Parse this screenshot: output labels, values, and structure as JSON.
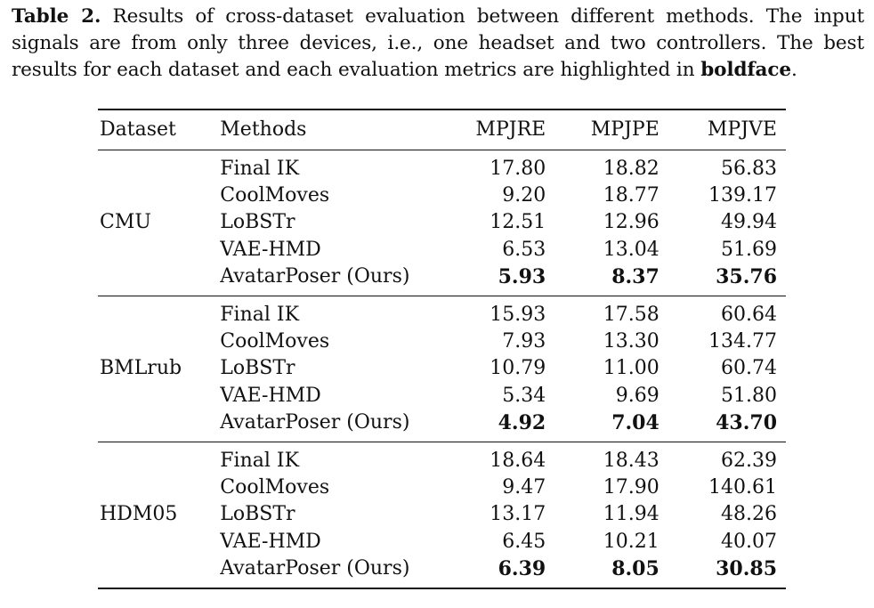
{
  "caption": {
    "label": "Table 2.",
    "text_before_bold": " Results of cross-dataset evaluation between different methods. The input signals are from only three devices, i.e., one headset and two controllers. The best results for each dataset and each evaluation metrics are highlighted in ",
    "bold_word": "boldface",
    "text_after_bold": "."
  },
  "table": {
    "headers": [
      "Dataset",
      "Methods",
      "MPJRE",
      "MPJPE",
      "MPJVE"
    ],
    "groups": [
      {
        "dataset": "CMU",
        "rows": [
          {
            "method": "Final IK",
            "mpjre": "17.80",
            "mpjpe": "18.82",
            "mpjve": "56.83"
          },
          {
            "method": "CoolMoves",
            "mpjre": "9.20",
            "mpjpe": "18.77",
            "mpjve": "139.17"
          },
          {
            "method": "LoBSTr",
            "mpjre": "12.51",
            "mpjpe": "12.96",
            "mpjve": "49.94"
          },
          {
            "method": "VAE-HMD",
            "mpjre": "6.53",
            "mpjpe": "13.04",
            "mpjve": "51.69"
          },
          {
            "method": "AvatarPoser (Ours)",
            "mpjre": "5.93",
            "mpjpe": "8.37",
            "mpjve": "35.76"
          }
        ]
      },
      {
        "dataset": "BMLrub",
        "rows": [
          {
            "method": "Final IK",
            "mpjre": "15.93",
            "mpjpe": "17.58",
            "mpjve": "60.64"
          },
          {
            "method": "CoolMoves",
            "mpjre": "7.93",
            "mpjpe": "13.30",
            "mpjve": "134.77"
          },
          {
            "method": "LoBSTr",
            "mpjre": "10.79",
            "mpjpe": "11.00",
            "mpjve": "60.74"
          },
          {
            "method": "VAE-HMD",
            "mpjre": "5.34",
            "mpjpe": "9.69",
            "mpjve": "51.80"
          },
          {
            "method": "AvatarPoser (Ours)",
            "mpjre": "4.92",
            "mpjpe": "7.04",
            "mpjve": "43.70"
          }
        ]
      },
      {
        "dataset": "HDM05",
        "rows": [
          {
            "method": "Final IK",
            "mpjre": "18.64",
            "mpjpe": "18.43",
            "mpjve": "62.39"
          },
          {
            "method": "CoolMoves",
            "mpjre": "9.47",
            "mpjpe": "17.90",
            "mpjve": "140.61"
          },
          {
            "method": "LoBSTr",
            "mpjre": "13.17",
            "mpjpe": "11.94",
            "mpjve": "48.26"
          },
          {
            "method": "VAE-HMD",
            "mpjre": "6.45",
            "mpjpe": "10.21",
            "mpjve": "40.07"
          },
          {
            "method": "AvatarPoser (Ours)",
            "mpjre": "6.39",
            "mpjpe": "8.05",
            "mpjve": "30.85"
          }
        ]
      }
    ]
  }
}
